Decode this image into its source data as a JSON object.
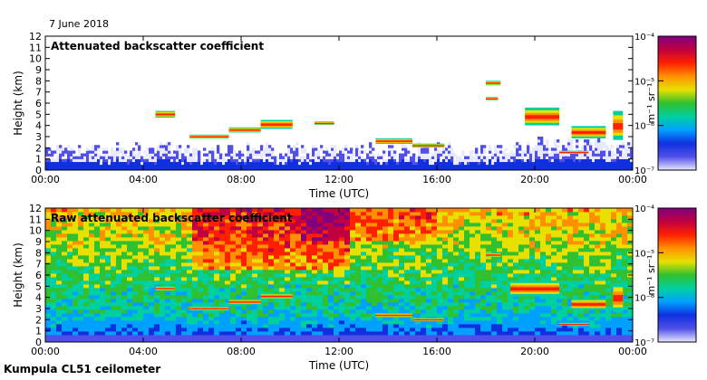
{
  "header": {
    "date": "7 June 2018"
  },
  "footer": {
    "instrument": "Kumpula CL51 ceilometer"
  },
  "colors": {
    "scale": [
      "#e8e8ff",
      "#5050e8",
      "#1030e0",
      "#00a0ff",
      "#00d0a0",
      "#30c030",
      "#e8e000",
      "#ff9000",
      "#ff2000",
      "#c00040",
      "#800080"
    ]
  },
  "chart_data": [
    {
      "type": "heatmap",
      "title": "Attenuated backscatter coefficient",
      "xlabel": "Time (UTC)",
      "ylabel": "Height (km)",
      "xlim": [
        0,
        24
      ],
      "ylim": [
        0,
        12
      ],
      "xticks": [
        "00:00",
        "04:00",
        "08:00",
        "12:00",
        "16:00",
        "20:00",
        "00:00"
      ],
      "yticks": [
        "0",
        "1",
        "2",
        "3",
        "4",
        "5",
        "6",
        "7",
        "8",
        "9",
        "10",
        "11",
        "12"
      ],
      "colorbar": {
        "label": "m⁻¹ sr⁻¹",
        "ticks": [
          "10⁻⁷",
          "10⁻⁶",
          "10⁻⁵",
          "10⁻⁴"
        ],
        "range_exp": [
          -7,
          -4
        ]
      },
      "features": [
        {
          "t0": 4.5,
          "t1": 5.3,
          "h": 5.0,
          "dh": 0.6
        },
        {
          "t0": 5.9,
          "t1": 7.5,
          "h": 3.0,
          "dh": 0.35
        },
        {
          "t0": 7.5,
          "t1": 8.8,
          "h": 3.6,
          "dh": 0.45
        },
        {
          "t0": 8.8,
          "t1": 10.1,
          "h": 4.1,
          "dh": 0.8
        },
        {
          "t0": 11.0,
          "t1": 11.8,
          "h": 4.2,
          "dh": 0.3
        },
        {
          "t0": 13.5,
          "t1": 15.0,
          "h": 2.6,
          "dh": 0.5
        },
        {
          "t0": 15.0,
          "t1": 16.3,
          "h": 2.2,
          "dh": 0.35
        },
        {
          "t0": 18.0,
          "t1": 18.6,
          "h": 7.8,
          "dh": 0.4
        },
        {
          "t0": 18.0,
          "t1": 18.5,
          "h": 6.4,
          "dh": 0.3
        },
        {
          "t0": 19.6,
          "t1": 21.0,
          "h": 4.8,
          "dh": 1.6
        },
        {
          "t0": 21.5,
          "t1": 22.9,
          "h": 3.4,
          "dh": 1.1
        },
        {
          "t0": 23.2,
          "t1": 23.6,
          "h": 4.0,
          "dh": 2.6
        },
        {
          "t0": 21.0,
          "t1": 22.2,
          "h": 1.6,
          "dh": 0.25
        }
      ]
    },
    {
      "type": "heatmap",
      "title": "Raw attenuated backscatter coefficient",
      "xlabel": "Time (UTC)",
      "ylabel": "Height (km)",
      "xlim": [
        0,
        24
      ],
      "ylim": [
        0,
        12
      ],
      "xticks": [
        "00:00",
        "04:00",
        "08:00",
        "12:00",
        "16:00",
        "20:00",
        "00:00"
      ],
      "yticks": [
        "0",
        "1",
        "2",
        "3",
        "4",
        "5",
        "6",
        "7",
        "8",
        "9",
        "10",
        "11",
        "12"
      ],
      "colorbar": {
        "label": "m⁻¹ sr⁻¹",
        "ticks": [
          "10⁻⁷",
          "10⁻⁶",
          "10⁻⁵",
          "10⁻⁴"
        ],
        "range_exp": [
          -7,
          -4
        ]
      },
      "features": [
        {
          "t0": 4.5,
          "t1": 5.3,
          "h": 4.8,
          "dh": 0.4
        },
        {
          "t0": 5.9,
          "t1": 7.5,
          "h": 3.0,
          "dh": 0.35
        },
        {
          "t0": 7.5,
          "t1": 8.8,
          "h": 3.6,
          "dh": 0.45
        },
        {
          "t0": 8.8,
          "t1": 10.1,
          "h": 4.1,
          "dh": 0.5
        },
        {
          "t0": 13.5,
          "t1": 15.0,
          "h": 2.4,
          "dh": 0.4
        },
        {
          "t0": 15.0,
          "t1": 16.3,
          "h": 2.0,
          "dh": 0.3
        },
        {
          "t0": 18.0,
          "t1": 18.6,
          "h": 7.8,
          "dh": 0.4
        },
        {
          "t0": 19.0,
          "t1": 21.0,
          "h": 4.8,
          "dh": 1.4
        },
        {
          "t0": 21.5,
          "t1": 22.9,
          "h": 3.4,
          "dh": 1.0
        },
        {
          "t0": 23.2,
          "t1": 23.6,
          "h": 4.0,
          "dh": 2.6
        },
        {
          "t0": 21.0,
          "t1": 22.2,
          "h": 1.6,
          "dh": 0.25
        }
      ]
    }
  ]
}
